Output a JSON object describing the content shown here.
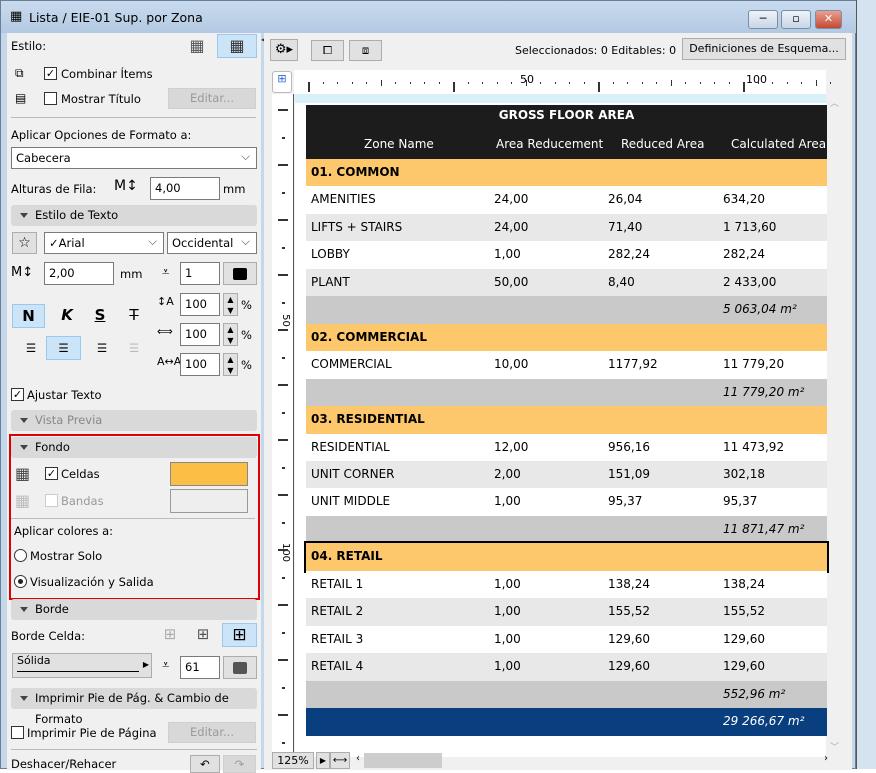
{
  "window": {
    "title": "Lista / EIE-01 Sup. por Zona",
    "minimize": "─",
    "maximize": "▫",
    "close": "✕"
  },
  "left": {
    "estilo_label": "Estilo:",
    "combinar": {
      "label": "Combinar Ítems",
      "checked": true
    },
    "mostrar_titulo": {
      "label": "Mostrar Título",
      "checked": false
    },
    "editar": "Editar...",
    "aplicar_label": "Aplicar Opciones de Formato a:",
    "aplicar_value": "Cabecera",
    "alturas_label": "Alturas de Fila:",
    "alturas_value": "4,00",
    "unit_mm": "mm",
    "estilo_texto": "Estilo de Texto",
    "font": "✓Arial",
    "script": "Occidental",
    "size": "2,00",
    "pen": "1",
    "pct1": "100",
    "pct2": "100",
    "pct3": "100",
    "pct": "%",
    "bold": "N",
    "italic": "K",
    "underline": "S",
    "strike": "T",
    "ajustar": {
      "label": "Ajustar Texto",
      "checked": true
    },
    "vista_previa": "Vista Previa",
    "fondo": "Fondo",
    "celdas": {
      "label": "Celdas",
      "checked": true,
      "color": "#fbbf45"
    },
    "bandas": {
      "label": "Bandas",
      "checked": false
    },
    "aplicar_colores": "Aplicar colores a:",
    "radio_mostrar": "Mostrar Solo",
    "radio_vis": "Visualización y Salida",
    "selected_radio": "Visualización y Salida",
    "borde": "Borde",
    "borde_celda": "Borde Celda:",
    "linea": "Sólida",
    "borde_pen": "61",
    "imprimir_sect": "Imprimir Pie de Pág. & Cambio de Formato",
    "imprimir_pie": {
      "label": "Imprimir Pie de Página",
      "checked": false
    },
    "editar2": "Editar...",
    "deshacer": "Deshacer/Rehacer"
  },
  "toolbar": {
    "status": "Seleccionados: 0  Editables: 0",
    "definiciones": "Definiciones de Esquema..."
  },
  "ruler": {
    "labels": [
      "50",
      "100"
    ],
    "vlabels": [
      "50",
      "100"
    ]
  },
  "zoom": "125%",
  "colors": {
    "header": "#1b1c1b",
    "category": "#fdc76b",
    "subtotal": "#c9c9c9",
    "total": "#0a3f7f",
    "band": "#e8e8e8"
  },
  "table": {
    "title": "GROSS FLOOR AREA",
    "columns": [
      "Zone Name",
      "Area Reducement",
      "Reduced Area",
      "Calculated Area"
    ],
    "rows": [
      {
        "type": "category",
        "name": "01. COMMON"
      },
      {
        "type": "data",
        "cells": [
          "AMENITIES",
          "24,00",
          "26,04",
          "634,20"
        ]
      },
      {
        "type": "data",
        "cells": [
          "LIFTS + STAIRS",
          "24,00",
          "71,40",
          "1 713,60"
        ]
      },
      {
        "type": "data",
        "cells": [
          "LOBBY",
          "1,00",
          "282,24",
          "282,24"
        ]
      },
      {
        "type": "data",
        "cells": [
          "PLANT",
          "50,00",
          "8,40",
          "2 433,00"
        ]
      },
      {
        "type": "subtotal",
        "value": "5 063,04 m²"
      },
      {
        "type": "category",
        "name": "02. COMMERCIAL"
      },
      {
        "type": "data",
        "cells": [
          "COMMERCIAL",
          "10,00",
          "1177,92",
          "11 779,20"
        ]
      },
      {
        "type": "subtotal",
        "value": "11 779,20 m²"
      },
      {
        "type": "category",
        "name": "03. RESIDENTIAL"
      },
      {
        "type": "data",
        "cells": [
          "RESIDENTIAL",
          "12,00",
          "956,16",
          "11 473,92"
        ]
      },
      {
        "type": "data",
        "cells": [
          "UNIT CORNER",
          "2,00",
          "151,09",
          "302,18"
        ]
      },
      {
        "type": "data",
        "cells": [
          "UNIT MIDDLE",
          "1,00",
          "95,37",
          "95,37"
        ]
      },
      {
        "type": "subtotal",
        "value": "11 871,47 m²"
      },
      {
        "type": "category",
        "name": "04. RETAIL",
        "selected": true
      },
      {
        "type": "data",
        "cells": [
          "RETAIL 1",
          "1,00",
          "138,24",
          "138,24"
        ]
      },
      {
        "type": "data",
        "cells": [
          "RETAIL 2",
          "1,00",
          "155,52",
          "155,52"
        ]
      },
      {
        "type": "data",
        "cells": [
          "RETAIL 3",
          "1,00",
          "129,60",
          "129,60"
        ]
      },
      {
        "type": "data",
        "cells": [
          "RETAIL 4",
          "1,00",
          "129,60",
          "129,60"
        ]
      },
      {
        "type": "subtotal",
        "value": "552,96 m²"
      },
      {
        "type": "total",
        "value": "29 266,67 m²"
      }
    ]
  }
}
